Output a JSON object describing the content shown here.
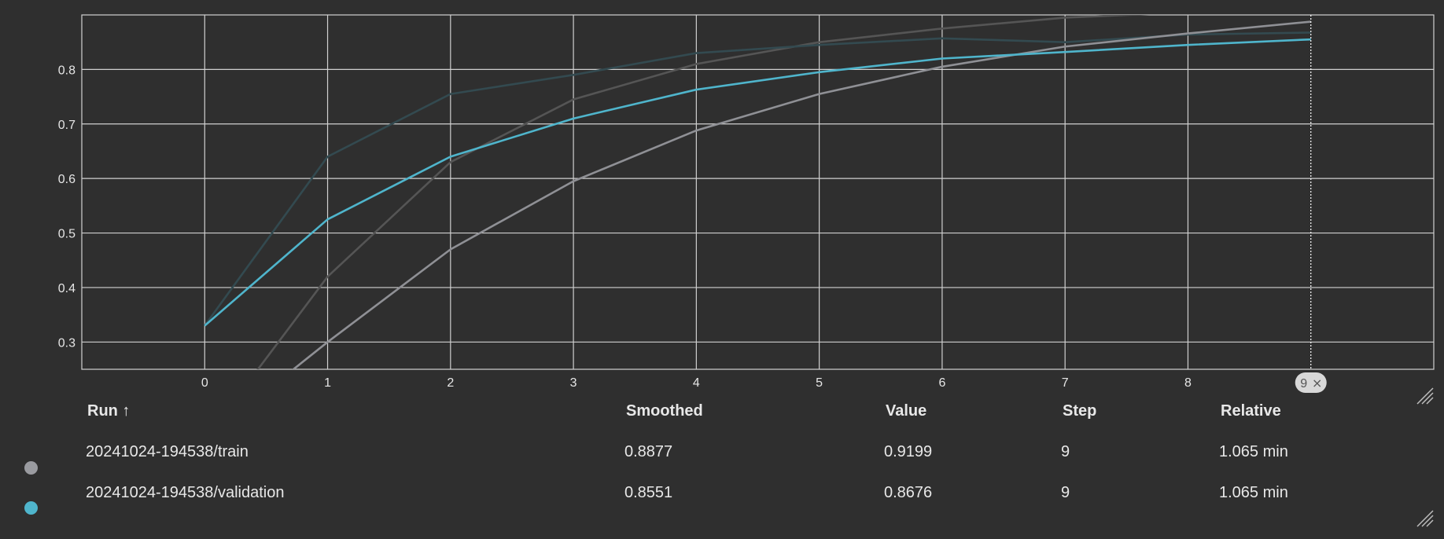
{
  "chart_data": {
    "type": "line",
    "x": [
      0,
      1,
      2,
      3,
      4,
      5,
      6,
      7,
      8,
      9
    ],
    "xlim": [
      -1,
      10
    ],
    "ylim": [
      0.25,
      0.9
    ],
    "x_ticks": [
      0,
      1,
      2,
      3,
      4,
      5,
      6,
      7,
      8
    ],
    "y_ticks": [
      0.3,
      0.4,
      0.5,
      0.6,
      0.7,
      0.8
    ],
    "y_tick_labels": [
      "0.3",
      "0.4",
      "0.5",
      "0.6",
      "0.7",
      "0.8"
    ],
    "grid": true,
    "series": [
      {
        "name": "20241024-194538/train (raw)",
        "color": "#555555",
        "values": [
          0.12,
          0.42,
          0.63,
          0.745,
          0.81,
          0.85,
          0.875,
          0.895,
          0.905,
          0.92
        ]
      },
      {
        "name": "20241024-194538/validation (raw)",
        "color": "#334a50",
        "values": [
          0.33,
          0.64,
          0.755,
          0.79,
          0.83,
          0.845,
          0.857,
          0.85,
          0.864,
          0.8676
        ]
      },
      {
        "name": "20241024-194538/train",
        "color": "#8f9095",
        "values": [
          0.12,
          0.3,
          0.47,
          0.595,
          0.688,
          0.755,
          0.805,
          0.842,
          0.866,
          0.8877
        ]
      },
      {
        "name": "20241024-194538/validation",
        "color": "#4fb5cc",
        "values": [
          0.33,
          0.525,
          0.64,
          0.71,
          0.763,
          0.795,
          0.82,
          0.832,
          0.845,
          0.8551
        ]
      }
    ],
    "cursor_step": "9"
  },
  "table": {
    "headers": {
      "run": "Run ↑",
      "smoothed": "Smoothed",
      "value": "Value",
      "step": "Step",
      "relative": "Relative"
    },
    "rows": [
      {
        "run": "20241024-194538/train",
        "smoothed": "0.8877",
        "value": "0.9199",
        "step": "9",
        "relative": "1.065 min",
        "color": "#9a9ba0"
      },
      {
        "run": "20241024-194538/validation",
        "smoothed": "0.8551",
        "value": "0.8676",
        "step": "9",
        "relative": "1.065 min",
        "color": "#4fb5cc"
      }
    ]
  },
  "colors": {
    "background": "#2f2f2f",
    "grid": "#d0d0d0",
    "text": "#e8e8e8"
  }
}
